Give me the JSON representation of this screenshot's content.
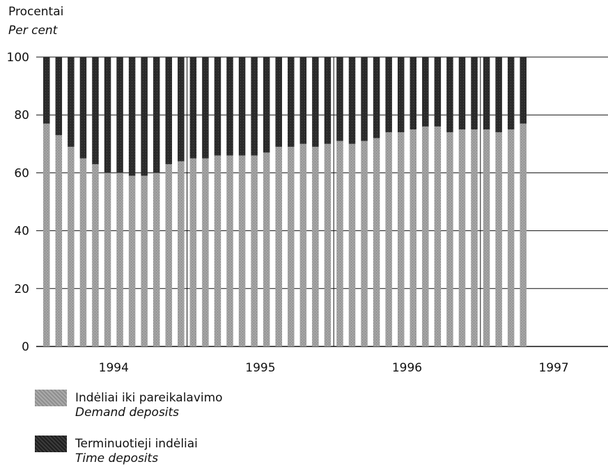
{
  "y_axis": {
    "label_lt": "Procentai",
    "label_en": "Per cent"
  },
  "legend": [
    {
      "label_lt": "Indėliai iki pareikalavimo",
      "label_en": "Demand deposits",
      "color": "#9a9a9a"
    },
    {
      "label_lt": "Terminuotieji indėliai",
      "label_en": "Time deposits",
      "color": "#262626"
    }
  ],
  "chart_data": {
    "type": "bar",
    "stacked": true,
    "ylim": [
      0,
      100
    ],
    "yticks": [
      0,
      20,
      40,
      60,
      80,
      100
    ],
    "grid": true,
    "x_labels": [
      "1994",
      "1995",
      "1996",
      "1997"
    ],
    "months_per_year": 12,
    "categories": [
      "1994-01",
      "1994-02",
      "1994-03",
      "1994-04",
      "1994-05",
      "1994-06",
      "1994-07",
      "1994-08",
      "1994-09",
      "1994-10",
      "1994-11",
      "1994-12",
      "1995-01",
      "1995-02",
      "1995-03",
      "1995-04",
      "1995-05",
      "1995-06",
      "1995-07",
      "1995-08",
      "1995-09",
      "1995-10",
      "1995-11",
      "1995-12",
      "1996-01",
      "1996-02",
      "1996-03",
      "1996-04",
      "1996-05",
      "1996-06",
      "1996-07",
      "1996-08",
      "1996-09",
      "1996-10",
      "1996-11",
      "1996-12",
      "1997-01",
      "1997-02",
      "1997-03",
      "1997-04"
    ],
    "series": [
      {
        "name": "Demand deposits",
        "values": [
          77,
          73,
          69,
          65,
          63,
          60,
          60,
          59,
          59,
          60,
          63,
          64,
          65,
          65,
          66,
          66,
          66,
          66,
          67,
          69,
          69,
          70,
          69,
          70,
          71,
          70,
          71,
          72,
          74,
          74,
          75,
          76,
          76,
          74,
          75,
          75,
          75,
          74,
          75,
          77
        ]
      },
      {
        "name": "Time deposits",
        "values": [
          23,
          27,
          31,
          35,
          37,
          40,
          40,
          41,
          41,
          40,
          37,
          36,
          35,
          35,
          34,
          34,
          34,
          34,
          33,
          31,
          31,
          30,
          31,
          30,
          29,
          30,
          29,
          28,
          26,
          26,
          25,
          24,
          24,
          26,
          25,
          25,
          25,
          26,
          25,
          23
        ]
      }
    ]
  }
}
